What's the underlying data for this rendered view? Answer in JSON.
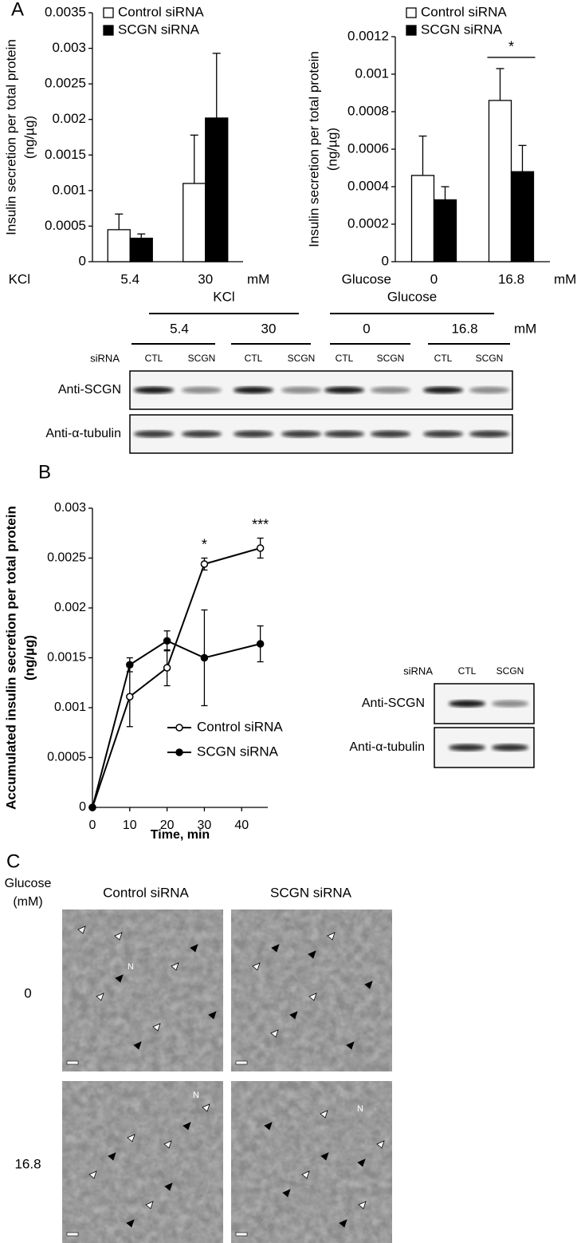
{
  "panel_labels": [
    "A",
    "B",
    "C"
  ],
  "chart_data": [
    {
      "type": "bar",
      "ylabel": [
        "Insulin secretion per total protein",
        "(ng/µg)"
      ],
      "xlabel": "KCl",
      "x_unit": "mM",
      "categories": [
        "5.4",
        "30"
      ],
      "series": [
        {
          "name": "Control siRNA",
          "color": "#ffffff",
          "values": [
            0.00045,
            0.0011
          ],
          "errors": [
            0.00022,
            0.00068
          ]
        },
        {
          "name": "SCGN siRNA",
          "color": "#000000",
          "values": [
            0.00033,
            0.00202
          ],
          "errors": [
            6e-05,
            0.00091
          ]
        }
      ],
      "ylim": [
        0,
        0.0035
      ],
      "yticks": [
        0,
        0.0005,
        0.001,
        0.0015,
        0.002,
        0.0025,
        0.003,
        0.0035
      ],
      "legend": "upper left"
    },
    {
      "type": "bar",
      "ylabel": [
        "Insulin secretion per total protein",
        "(ng/µg)"
      ],
      "xlabel": "Glucose",
      "x_unit": "mM",
      "categories": [
        "0",
        "16.8"
      ],
      "series": [
        {
          "name": "Control siRNA",
          "color": "#ffffff",
          "values": [
            0.00046,
            0.00086
          ],
          "errors": [
            0.00021,
            0.00017
          ]
        },
        {
          "name": "SCGN siRNA",
          "color": "#000000",
          "values": [
            0.00033,
            0.00048
          ],
          "errors": [
            7e-05,
            0.00014
          ]
        }
      ],
      "ylim": [
        0,
        0.0012
      ],
      "yticks": [
        0,
        0.0002,
        0.0004,
        0.0006,
        0.0008,
        0.001,
        0.0012
      ],
      "legend": "upper left",
      "annotations": [
        {
          "text": "*",
          "x": "16.8"
        }
      ]
    },
    {
      "type": "line",
      "ylabel": [
        "Accumulated insulin secretion per total protein",
        "(ng/µg)"
      ],
      "xlabel": "Time, min",
      "x": [
        0,
        10,
        20,
        30,
        45
      ],
      "series": [
        {
          "name": "Control siRNA",
          "color": "#000000",
          "marker_fill": "#ffffff",
          "values": [
            0,
            0.00111,
            0.0014,
            0.00244,
            0.0026
          ],
          "errors": [
            0,
            0.0003,
            0.00018,
            6e-05,
            0.0001
          ]
        },
        {
          "name": "SCGN siRNA",
          "color": "#000000",
          "marker_fill": "#000000",
          "values": [
            0,
            0.00143,
            0.00167,
            0.0015,
            0.00164
          ],
          "errors": [
            0,
            7e-05,
            0.0001,
            0.00048,
            0.00018
          ]
        }
      ],
      "xlim": [
        0,
        47
      ],
      "xticks": [
        0,
        10,
        20,
        30,
        40
      ],
      "ylim": [
        0,
        0.003
      ],
      "yticks": [
        0,
        0.0005,
        0.001,
        0.0015,
        0.002,
        0.0025,
        0.003
      ],
      "legend": "lower center",
      "annotations": [
        {
          "text": "*",
          "x": 30
        },
        {
          "text": "***",
          "x": 45
        }
      ]
    }
  ],
  "blot_a": {
    "groups": [
      {
        "label": "KCl",
        "conditions": [
          "5.4",
          "30"
        ]
      },
      {
        "label": "Glucose",
        "conditions": [
          "0",
          "16.8"
        ]
      }
    ],
    "unit": "mM",
    "lane_header": "siRNA",
    "lanes": [
      "CTL",
      "SCGN",
      "CTL",
      "SCGN",
      "CTL",
      "SCGN",
      "CTL",
      "SCGN"
    ],
    "rows": [
      "Anti-SCGN",
      "Anti-α-tubulin"
    ]
  },
  "blot_b": {
    "lane_header": "siRNA",
    "lanes": [
      "CTL",
      "SCGN"
    ],
    "rows": [
      "Anti-SCGN",
      "Anti-α-tubulin"
    ]
  },
  "panel_c": {
    "row_header": [
      "Glucose",
      "(mM)"
    ],
    "columns": [
      "Control siRNA",
      "SCGN siRNA"
    ],
    "rows": [
      "0",
      "16.8"
    ],
    "image_labels": [
      "N",
      "N",
      "N"
    ]
  }
}
